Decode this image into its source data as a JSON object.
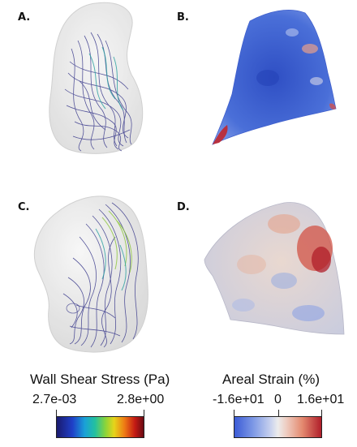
{
  "panels": {
    "a": {
      "label": "A."
    },
    "b": {
      "label": "B."
    },
    "c": {
      "label": "C."
    },
    "d": {
      "label": "D."
    }
  },
  "legend_wss": {
    "title": "Wall Shear Stress (Pa)",
    "min_label": "2.7e-03",
    "max_label": "2.8e+00"
  },
  "legend_strain": {
    "title": "Areal Strain (%)",
    "min_label": "-1.6e+01",
    "mid_label": "0",
    "max_label": "1.6e+01"
  },
  "colors": {
    "streamline": "#3a3a8c",
    "streamline_highlight": "#2aa0a0",
    "strain_high": "#c0272d",
    "strain_low": "#3b5bd6"
  }
}
